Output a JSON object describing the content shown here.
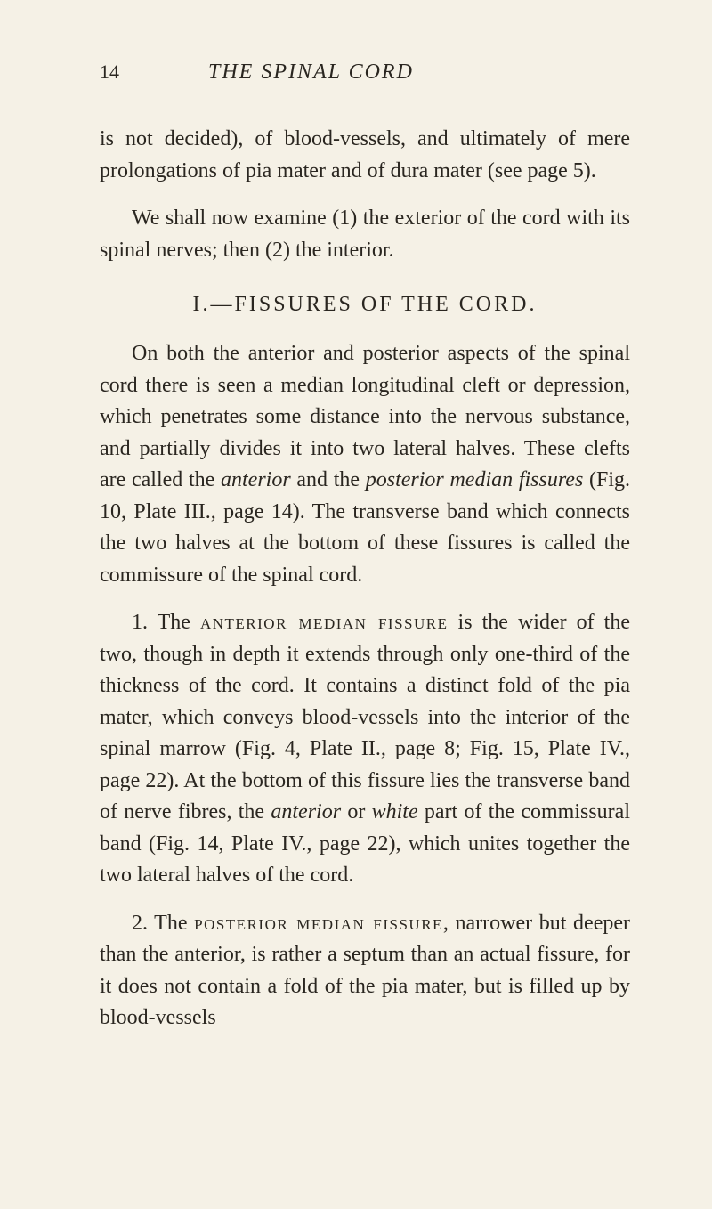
{
  "page": {
    "number": "14",
    "running_title": "THE SPINAL CORD",
    "background_color": "#f5f1e6",
    "text_color": "#2a2620",
    "body_font_size": 24,
    "line_height": 1.48
  },
  "paragraphs": {
    "p1_part1": "is not decided), of blood-vessels, and ultimately of mere prolongations of pia mater and of dura mater (see page 5).",
    "p2": "We shall now examine (1) the exterior of the cord with its spinal nerves; then (2) the interior.",
    "section_heading": "I.—FISSURES OF THE CORD.",
    "p3_part1": "On both the anterior and posterior aspects of the spinal cord there is seen a median longitudinal cleft or depression, which penetrates some distance into the nervous substance, and partially divides it into two lateral halves. These clefts are called the ",
    "p3_italic1": "anterior",
    "p3_part2": " and the ",
    "p3_italic2": "posterior median fissures",
    "p3_part3": " (Fig. 10, Plate III., page 14). The transverse band which connects the two halves at the bottom of these fissures is called the commissure of the spinal cord.",
    "p4_part1": "1. The ",
    "p4_sc1": "anterior median fissure",
    "p4_part2": " is the wider of the two, though in depth it extends through only one-third of the thickness of the cord. It contains a distinct fold of the pia mater, which conveys blood-vessels into the interior of the spinal marrow (Fig. 4, Plate II., page 8; Fig. 15, Plate IV., page 22). At the bottom of this fissure lies the transverse band of nerve fibres, the ",
    "p4_italic1": "anterior",
    "p4_part3": " or ",
    "p4_italic2": "white",
    "p4_part4": " part of the commissural band (Fig. 14, Plate IV., page 22), which unites together the two lateral halves of the cord.",
    "p5_part1": "2. The ",
    "p5_sc1": "posterior median fissure",
    "p5_part2": ", narrower but deeper than the anterior, is rather a septum than an actual fissure, for it does not contain a fold of the pia mater, but is filled up by blood-vessels"
  }
}
